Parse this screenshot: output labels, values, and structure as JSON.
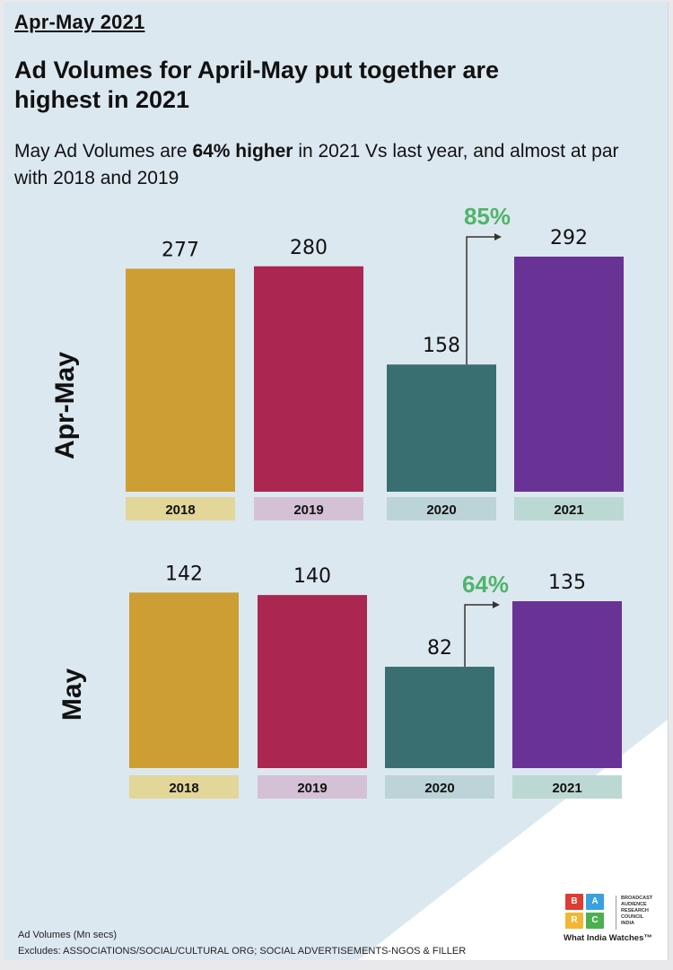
{
  "period": "Apr-May 2021",
  "headline": "Ad Volumes for April-May put together are highest in 2021",
  "subhead": {
    "before": "May Ad Volumes are ",
    "bold": "64% higher",
    "after": " in 2021 Vs last year, and almost at par with 2018 and 2019"
  },
  "colors": {
    "2018": "#cc9e33",
    "2019": "#ab2650",
    "2020": "#3a6f72",
    "2021": "#693396",
    "label_bg": {
      "2018": "#e2d698",
      "2019": "#d4c1d5",
      "2020": "#bcd3d8",
      "2021": "#bcd8d2"
    },
    "growth": "#4fb46a"
  },
  "chart_data": [
    {
      "type": "bar",
      "title": "Apr-May",
      "categories": [
        "2018",
        "2019",
        "2020",
        "2021"
      ],
      "values": [
        277,
        280,
        158,
        292
      ],
      "growth_annotation": {
        "from": "2020",
        "to": "2021",
        "label": "85%"
      },
      "ylabel": "Apr-May",
      "unit": "Mn secs"
    },
    {
      "type": "bar",
      "title": "May",
      "categories": [
        "2018",
        "2019",
        "2020",
        "2021"
      ],
      "values": [
        142,
        140,
        82,
        135
      ],
      "growth_annotation": {
        "from": "2020",
        "to": "2021",
        "label": "64%"
      },
      "ylabel": "May",
      "unit": "Mn secs"
    }
  ],
  "footer": {
    "units": "Ad Volumes (Mn secs)",
    "excludes": "Excludes: ASSOCIATIONS/SOCIAL/CULTURAL ORG; SOCIAL ADVERTISEMENTS-NGOS & FILLER"
  },
  "logo": {
    "tiles": [
      {
        "letter": "B",
        "color": "#e03c31"
      },
      {
        "letter": "A",
        "color": "#3aa0e0"
      },
      {
        "letter": "R",
        "color": "#f2b632"
      },
      {
        "letter": "C",
        "color": "#4caf50"
      }
    ],
    "name_lines": [
      "BROADCAST",
      "AUDIENCE",
      "RESEARCH",
      "COUNCIL",
      "INDIA"
    ],
    "tagline": "What India Watches™"
  }
}
